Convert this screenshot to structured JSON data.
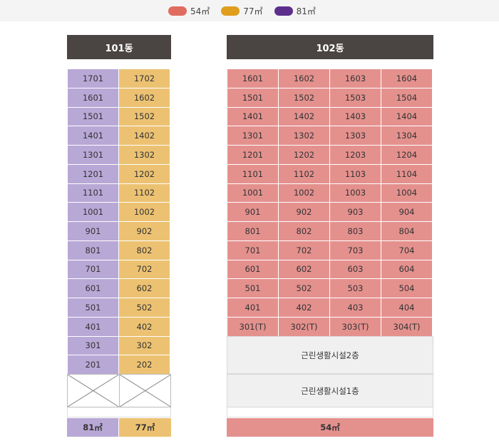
{
  "legend": [
    {
      "label": "54㎡",
      "color": "#e06b5f"
    },
    {
      "label": "77㎡",
      "color": "#e09e1c"
    },
    {
      "label": "81㎡",
      "color": "#5d2f8c"
    }
  ],
  "buildings": {
    "b101": {
      "title": "101동",
      "rows": [
        [
          "1701",
          "1702"
        ],
        [
          "1601",
          "1602"
        ],
        [
          "1501",
          "1502"
        ],
        [
          "1401",
          "1402"
        ],
        [
          "1301",
          "1302"
        ],
        [
          "1201",
          "1202"
        ],
        [
          "1101",
          "1102"
        ],
        [
          "1001",
          "1002"
        ],
        [
          "901",
          "902"
        ],
        [
          "801",
          "802"
        ],
        [
          "701",
          "702"
        ],
        [
          "601",
          "602"
        ],
        [
          "501",
          "502"
        ],
        [
          "401",
          "402"
        ],
        [
          "301",
          "302"
        ],
        [
          "201",
          "202"
        ]
      ],
      "column_types": [
        "81㎡",
        "77㎡"
      ],
      "footer": [
        "81㎡",
        "77㎡"
      ]
    },
    "b102": {
      "title": "102동",
      "rows": [
        [
          "1601",
          "1602",
          "1603",
          "1604"
        ],
        [
          "1501",
          "1502",
          "1503",
          "1504"
        ],
        [
          "1401",
          "1402",
          "1403",
          "1404"
        ],
        [
          "1301",
          "1302",
          "1303",
          "1304"
        ],
        [
          "1201",
          "1202",
          "1203",
          "1204"
        ],
        [
          "1101",
          "1102",
          "1103",
          "1104"
        ],
        [
          "1001",
          "1002",
          "1003",
          "1004"
        ],
        [
          "901",
          "902",
          "903",
          "904"
        ],
        [
          "801",
          "802",
          "803",
          "804"
        ],
        [
          "701",
          "702",
          "703",
          "704"
        ],
        [
          "601",
          "602",
          "603",
          "604"
        ],
        [
          "501",
          "502",
          "503",
          "504"
        ],
        [
          "401",
          "402",
          "403",
          "404"
        ],
        [
          "301(T)",
          "302(T)",
          "303(T)",
          "304(T)"
        ]
      ],
      "facilities": [
        "근린생활시설2층",
        "근린생활시설1층"
      ],
      "footer": "54㎡"
    }
  },
  "colors": {
    "cell_81": "#b8a8d6",
    "cell_77": "#ecc272",
    "cell_54": "#e4918e",
    "header_bg": "#4a4543"
  }
}
